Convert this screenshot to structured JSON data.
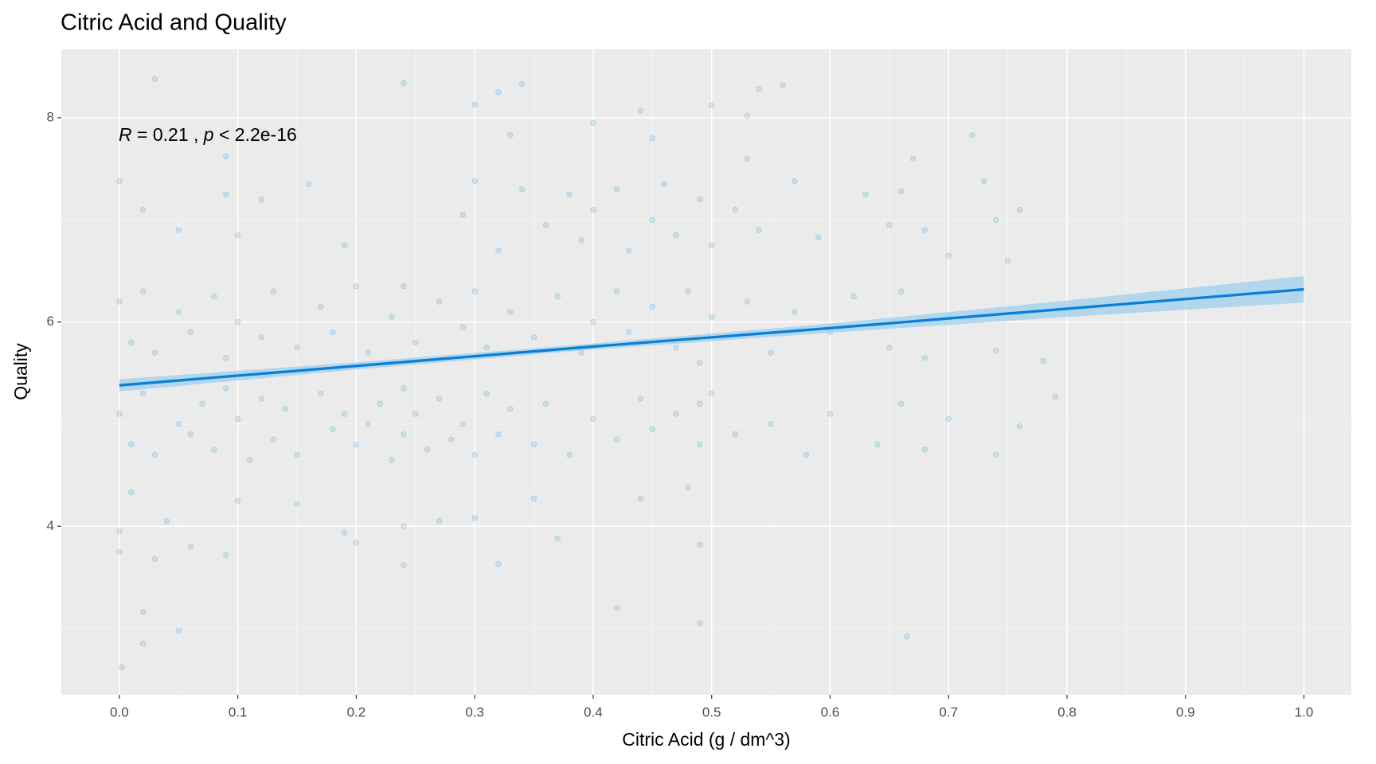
{
  "chart_data": {
    "type": "scatter",
    "title": "Citric Acid and Quality",
    "x_label": "Citric Acid (g / dm^3)",
    "y_label": "Quality",
    "annotation": {
      "r_symbol": "R",
      "r_text": " = 0.21 , ",
      "p_symbol": "p",
      "p_text": " < 2.2e-16"
    },
    "color": "#3b9ad9",
    "xlim": [
      -0.049,
      1.04
    ],
    "ylim": [
      2.35,
      8.67
    ],
    "xticks": [
      {
        "value": 0,
        "label": "0.0"
      },
      0.1,
      0.2,
      0.3,
      0.4,
      0.5,
      0.6,
      0.7,
      0.8,
      0.9,
      {
        "value": 1,
        "label": "1.0"
      }
    ],
    "xminor": [
      0.05,
      0.15,
      0.25,
      0.35,
      0.45,
      0.55,
      0.65,
      0.75,
      0.85,
      0.95
    ],
    "yticks": [
      4,
      6,
      8
    ],
    "yminor": [
      3,
      5,
      7
    ],
    "grid": true,
    "x": [
      0.002,
      0.02,
      0.05,
      0.42,
      0.49,
      0.665,
      0.0,
      0.02,
      0.0,
      0.03,
      0.06,
      0.09,
      0.1,
      0.19,
      0.2,
      0.24,
      0.24,
      0.32,
      0.3,
      0.37,
      0.44,
      0.49,
      0.48,
      0.04,
      0.15,
      0.27,
      0.35,
      0.01,
      0.0,
      0.01,
      0.02,
      0.03,
      0.05,
      0.06,
      0.07,
      0.08,
      0.09,
      0.1,
      0.11,
      0.12,
      0.13,
      0.14,
      0.15,
      0.17,
      0.18,
      0.19,
      0.2,
      0.21,
      0.22,
      0.23,
      0.24,
      0.24,
      0.25,
      0.26,
      0.27,
      0.28,
      0.29,
      0.3,
      0.31,
      0.32,
      0.33,
      0.35,
      0.36,
      0.38,
      0.4,
      0.42,
      0.44,
      0.45,
      0.47,
      0.49,
      0.49,
      0.5,
      0.52,
      0.55,
      0.58,
      0.6,
      0.64,
      0.66,
      0.68,
      0.7,
      0.74,
      0.76,
      0.79,
      0.0,
      0.01,
      0.02,
      0.03,
      0.05,
      0.06,
      0.08,
      0.09,
      0.1,
      0.12,
      0.13,
      0.15,
      0.17,
      0.18,
      0.2,
      0.21,
      0.23,
      0.24,
      0.25,
      0.27,
      0.29,
      0.3,
      0.31,
      0.33,
      0.35,
      0.37,
      0.39,
      0.4,
      0.42,
      0.43,
      0.45,
      0.47,
      0.48,
      0.49,
      0.5,
      0.51,
      0.53,
      0.55,
      0.57,
      0.6,
      0.62,
      0.65,
      0.66,
      0.68,
      0.7,
      0.74,
      0.78,
      0.0,
      0.02,
      0.05,
      0.09,
      0.1,
      0.12,
      0.16,
      0.19,
      0.29,
      0.3,
      0.32,
      0.34,
      0.36,
      0.38,
      0.39,
      0.4,
      0.42,
      0.43,
      0.45,
      0.46,
      0.47,
      0.49,
      0.5,
      0.52,
      0.54,
      0.57,
      0.59,
      0.63,
      0.65,
      0.66,
      0.68,
      0.7,
      0.73,
      0.74,
      0.76,
      0.75,
      0.03,
      0.24,
      0.3,
      0.32,
      0.34,
      0.4,
      0.44,
      0.5,
      0.53,
      0.54,
      0.56,
      0.33,
      0.45,
      0.72,
      0.09,
      0.53,
      0.67
    ],
    "values": [
      2.62,
      2.85,
      2.98,
      3.2,
      3.05,
      2.92,
      3.75,
      3.16,
      3.95,
      3.68,
      3.8,
      3.72,
      4.25,
      3.94,
      3.84,
      3.62,
      4.0,
      3.63,
      4.08,
      3.88,
      4.27,
      3.82,
      4.38,
      4.05,
      4.22,
      4.05,
      4.27,
      4.33,
      5.1,
      4.8,
      5.3,
      4.7,
      5.0,
      4.9,
      5.2,
      4.75,
      5.35,
      5.05,
      4.65,
      5.25,
      4.85,
      5.15,
      4.7,
      5.3,
      4.95,
      5.1,
      4.8,
      5.0,
      5.2,
      4.65,
      5.35,
      4.9,
      5.1,
      4.75,
      5.25,
      4.85,
      5.0,
      4.7,
      5.3,
      4.9,
      5.15,
      4.8,
      5.2,
      4.7,
      5.05,
      4.85,
      5.25,
      4.95,
      5.1,
      5.2,
      4.8,
      5.3,
      4.9,
      5.0,
      4.7,
      5.1,
      4.8,
      5.2,
      4.75,
      5.05,
      4.7,
      4.98,
      5.27,
      6.2,
      5.8,
      6.3,
      5.7,
      6.1,
      5.9,
      6.25,
      5.65,
      6.0,
      5.85,
      6.3,
      5.75,
      6.15,
      5.9,
      6.35,
      5.7,
      6.05,
      6.35,
      5.8,
      6.2,
      5.95,
      6.3,
      5.75,
      6.1,
      5.85,
      6.25,
      5.7,
      6.0,
      6.3,
      5.9,
      6.15,
      5.75,
      6.3,
      5.6,
      6.05,
      5.85,
      6.2,
      5.7,
      6.1,
      5.9,
      6.25,
      5.75,
      6.3,
      5.65,
      6.05,
      5.72,
      5.62,
      7.38,
      7.1,
      6.9,
      7.25,
      6.85,
      7.2,
      7.35,
      6.75,
      7.05,
      7.38,
      6.7,
      7.3,
      6.95,
      7.25,
      6.8,
      7.1,
      7.3,
      6.7,
      7.0,
      7.35,
      6.85,
      7.2,
      6.75,
      7.1,
      6.9,
      7.38,
      6.83,
      7.25,
      6.95,
      7.28,
      6.9,
      6.65,
      7.38,
      7.0,
      7.1,
      6.6,
      8.38,
      8.34,
      8.13,
      8.25,
      8.33,
      7.95,
      8.07,
      8.12,
      8.02,
      8.28,
      8.32,
      7.83,
      7.8,
      7.83,
      7.62,
      7.6,
      7.6
    ],
    "fit": {
      "color": "#0a7fd6",
      "band_color": "#9fd0ee",
      "x": [
        0,
        0.2,
        0.4,
        0.6,
        0.8,
        1.0
      ],
      "values": [
        5.38,
        5.57,
        5.76,
        5.94,
        6.13,
        6.32
      ],
      "lower": [
        5.32,
        5.535,
        5.73,
        5.895,
        6.05,
        6.19
      ],
      "upper": [
        5.44,
        5.605,
        5.79,
        5.985,
        6.21,
        6.45
      ]
    }
  }
}
